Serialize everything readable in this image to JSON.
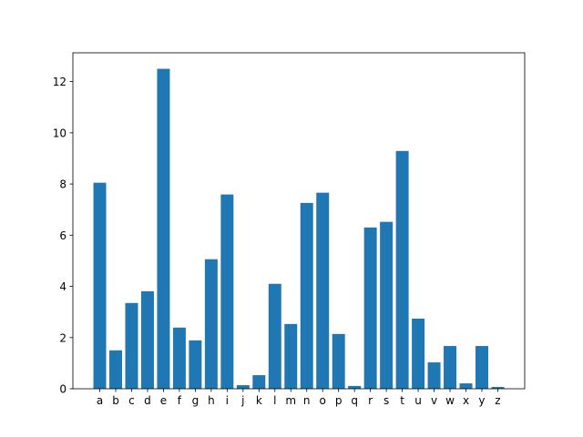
{
  "chart_data": {
    "type": "bar",
    "categories": [
      "a",
      "b",
      "c",
      "d",
      "e",
      "f",
      "g",
      "h",
      "i",
      "j",
      "k",
      "l",
      "m",
      "n",
      "o",
      "p",
      "q",
      "r",
      "s",
      "t",
      "u",
      "v",
      "w",
      "x",
      "y",
      "z"
    ],
    "values": [
      8.05,
      1.5,
      3.35,
      3.81,
      12.5,
      2.39,
      1.89,
      5.06,
      7.59,
      0.14,
      0.53,
      4.1,
      2.53,
      7.26,
      7.66,
      2.14,
      0.11,
      6.3,
      6.52,
      9.29,
      2.74,
      1.03,
      1.67,
      0.21,
      1.67,
      0.07
    ],
    "color": "#1f77b4",
    "ylim": [
      0,
      13.125
    ],
    "yticks": [
      0,
      2,
      4,
      6,
      8,
      10,
      12
    ],
    "grid": false
  }
}
